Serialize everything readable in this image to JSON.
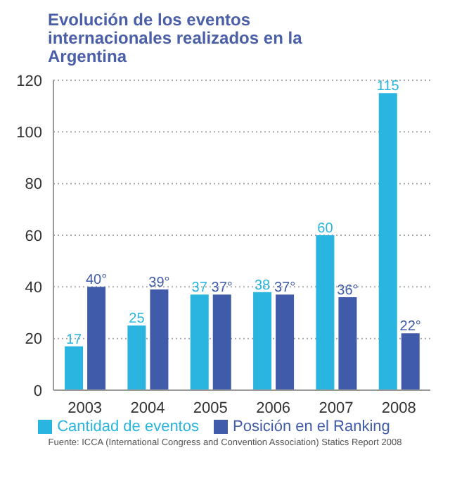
{
  "chart_data": {
    "type": "bar",
    "title": "Evolución de los eventos internacionales realizados en la Argentina",
    "categories": [
      "2003",
      "2004",
      "2005",
      "2006",
      "2007",
      "2008"
    ],
    "series": [
      {
        "name": "Cantidad de eventos",
        "color": "#29b5e0",
        "values": [
          17,
          25,
          37,
          38,
          60,
          115
        ],
        "value_labels": [
          "17",
          "25",
          "37",
          "38",
          "60",
          "115"
        ]
      },
      {
        "name": "Posición en el Ranking",
        "color": "#3f5ba9",
        "values": [
          40,
          39,
          37,
          37,
          36,
          22
        ],
        "value_labels": [
          "40°",
          "39°",
          "37°",
          "37°",
          "36°",
          "22°"
        ]
      }
    ],
    "ylim": [
      0,
      120
    ],
    "yticks": [
      0,
      20,
      40,
      60,
      80,
      100,
      120
    ],
    "grid": "y",
    "legend": "bottom",
    "annotations": [
      "Fuente: ICCA (International Congress and Convention Association) Statics Report 2008"
    ]
  }
}
